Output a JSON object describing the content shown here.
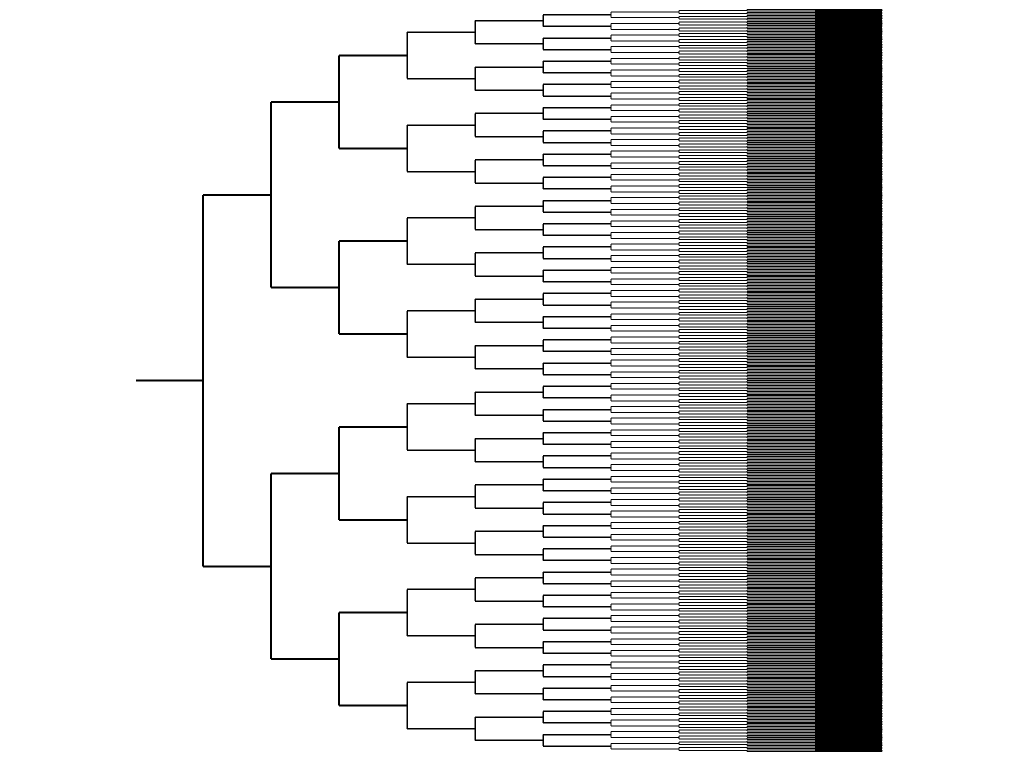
{
  "diagram": {
    "type": "dendrogram",
    "orientation": "left-to-right",
    "levels": 11,
    "leaf_count": 1024,
    "line_color": "#000000",
    "background_color": "#ffffff"
  },
  "ui": {
    "canvas_label": ""
  }
}
